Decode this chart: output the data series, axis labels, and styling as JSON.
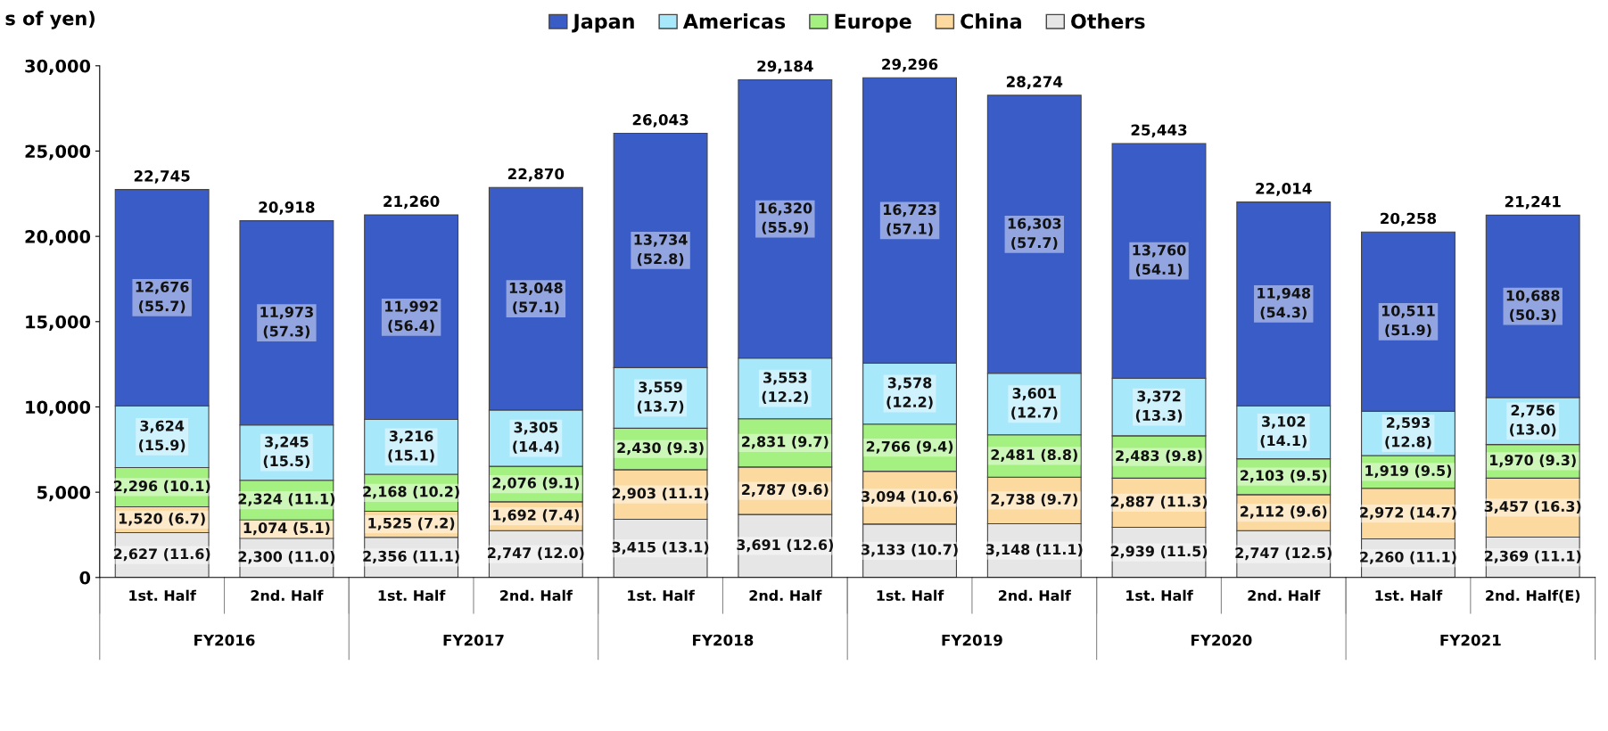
{
  "chart_data": {
    "type": "bar",
    "stacked": true,
    "ylabel": "s of yen)",
    "legend": "top",
    "grid": false,
    "categories": [
      "1st. Half",
      "2nd. Half",
      "1st. Half",
      "2nd. Half",
      "1st. Half",
      "2nd. Half",
      "1st. Half",
      "2nd. Half",
      "1st. Half",
      "2nd. Half",
      "1st. Half",
      "2nd. Half(E)"
    ],
    "annotations": [
      "FY2016",
      "FY2017",
      "FY2018",
      "FY2019",
      "FY2020",
      "FY2021"
    ],
    "ylim": [
      0,
      30000
    ],
    "yticks": [
      0,
      {
        "value": 5000,
        "label": "5,000"
      },
      {
        "value": 10000,
        "label": "10,000"
      },
      {
        "value": 15000,
        "label": "15,000"
      },
      {
        "value": 20000,
        "label": "20,000"
      },
      {
        "value": 25000,
        "label": "25,000"
      },
      {
        "value": 30000,
        "label": "30,000"
      }
    ],
    "totals": [
      "22,745",
      "20,918",
      "21,260",
      "22,870",
      "26,043",
      "29,184",
      "29,296",
      "28,274",
      "25,443",
      "22,014",
      "20,258",
      "21,241"
    ],
    "series": [
      {
        "name": "Others",
        "color": "#e6e6e6",
        "values": [
          2627,
          2300,
          2356,
          2747,
          3415,
          3691,
          3133,
          3148,
          2939,
          2747,
          2260,
          2369
        ],
        "value_labels": [
          "2,627 (11.6)",
          "2,300 (11.0)",
          "2,356 (11.1)",
          "2,747 (12.0)",
          "3,415 (13.1)",
          "3,691 (12.6)",
          "3,133 (10.7)",
          "3,148 (11.1)",
          "2,939 (11.5)",
          "2,747 (12.5)",
          "2,260 (11.1)",
          "2,369 (11.1)"
        ]
      },
      {
        "name": "China",
        "color": "#fcd99e",
        "values": [
          1520,
          1074,
          1525,
          1692,
          2903,
          2787,
          3094,
          2738,
          2887,
          2112,
          2972,
          3457
        ],
        "value_labels": [
          "1,520 (6.7)",
          "1,074 (5.1)",
          "1,525 (7.2)",
          "1,692 (7.4)",
          "2,903 (11.1)",
          "2,787 (9.6)",
          "3,094 (10.6)",
          "2,738 (9.7)",
          "2,887 (11.3)",
          "2,112 (9.6)",
          "2,972 (14.7)",
          "3,457 (16.3)"
        ]
      },
      {
        "name": "Europe",
        "color": "#a4f080",
        "values": [
          2296,
          2324,
          2168,
          2076,
          2430,
          2831,
          2766,
          2481,
          2483,
          2103,
          1919,
          1970
        ],
        "value_labels": [
          "2,296 (10.1)",
          "2,324 (11.1)",
          "2,168 (10.2)",
          "2,076 (9.1)",
          "2,430 (9.3)",
          "2,831 (9.7)",
          "2,766 (9.4)",
          "2,481 (8.8)",
          "2,483 (9.8)",
          "2,103 (9.5)",
          "1,919 (9.5)",
          "1,970 (9.3)"
        ]
      },
      {
        "name": "Americas",
        "color": "#a8e8fb",
        "values": [
          3624,
          3245,
          3216,
          3305,
          3559,
          3553,
          3578,
          3601,
          3372,
          3102,
          2593,
          2756
        ],
        "value_labels": [
          "3,624\n(15.9)",
          "3,245\n(15.5)",
          "3,216\n(15.1)",
          "3,305\n(14.4)",
          "3,559\n(13.7)",
          "3,553\n(12.2)",
          "3,578\n(12.2)",
          "3,601\n(12.7)",
          "3,372\n(13.3)",
          "3,102\n(14.1)",
          "2,593\n(12.8)",
          "2,756\n(13.0)"
        ]
      },
      {
        "name": "Japan",
        "color": "#3a5cc6",
        "values": [
          12676,
          11973,
          11992,
          13048,
          13734,
          16320,
          16723,
          16303,
          13760,
          11948,
          10511,
          10688
        ],
        "value_labels": [
          "12,676\n(55.7)",
          "11,973\n(57.3)",
          "11,992\n(56.4)",
          "13,048\n(57.1)",
          "13,734\n(52.8)",
          "16,320\n(55.9)",
          "16,723\n(57.1)",
          "16,303\n(57.7)",
          "13,760\n(54.1)",
          "11,948\n(54.3)",
          "10,511\n(51.9)",
          "10,688\n(50.3)"
        ]
      }
    ]
  }
}
